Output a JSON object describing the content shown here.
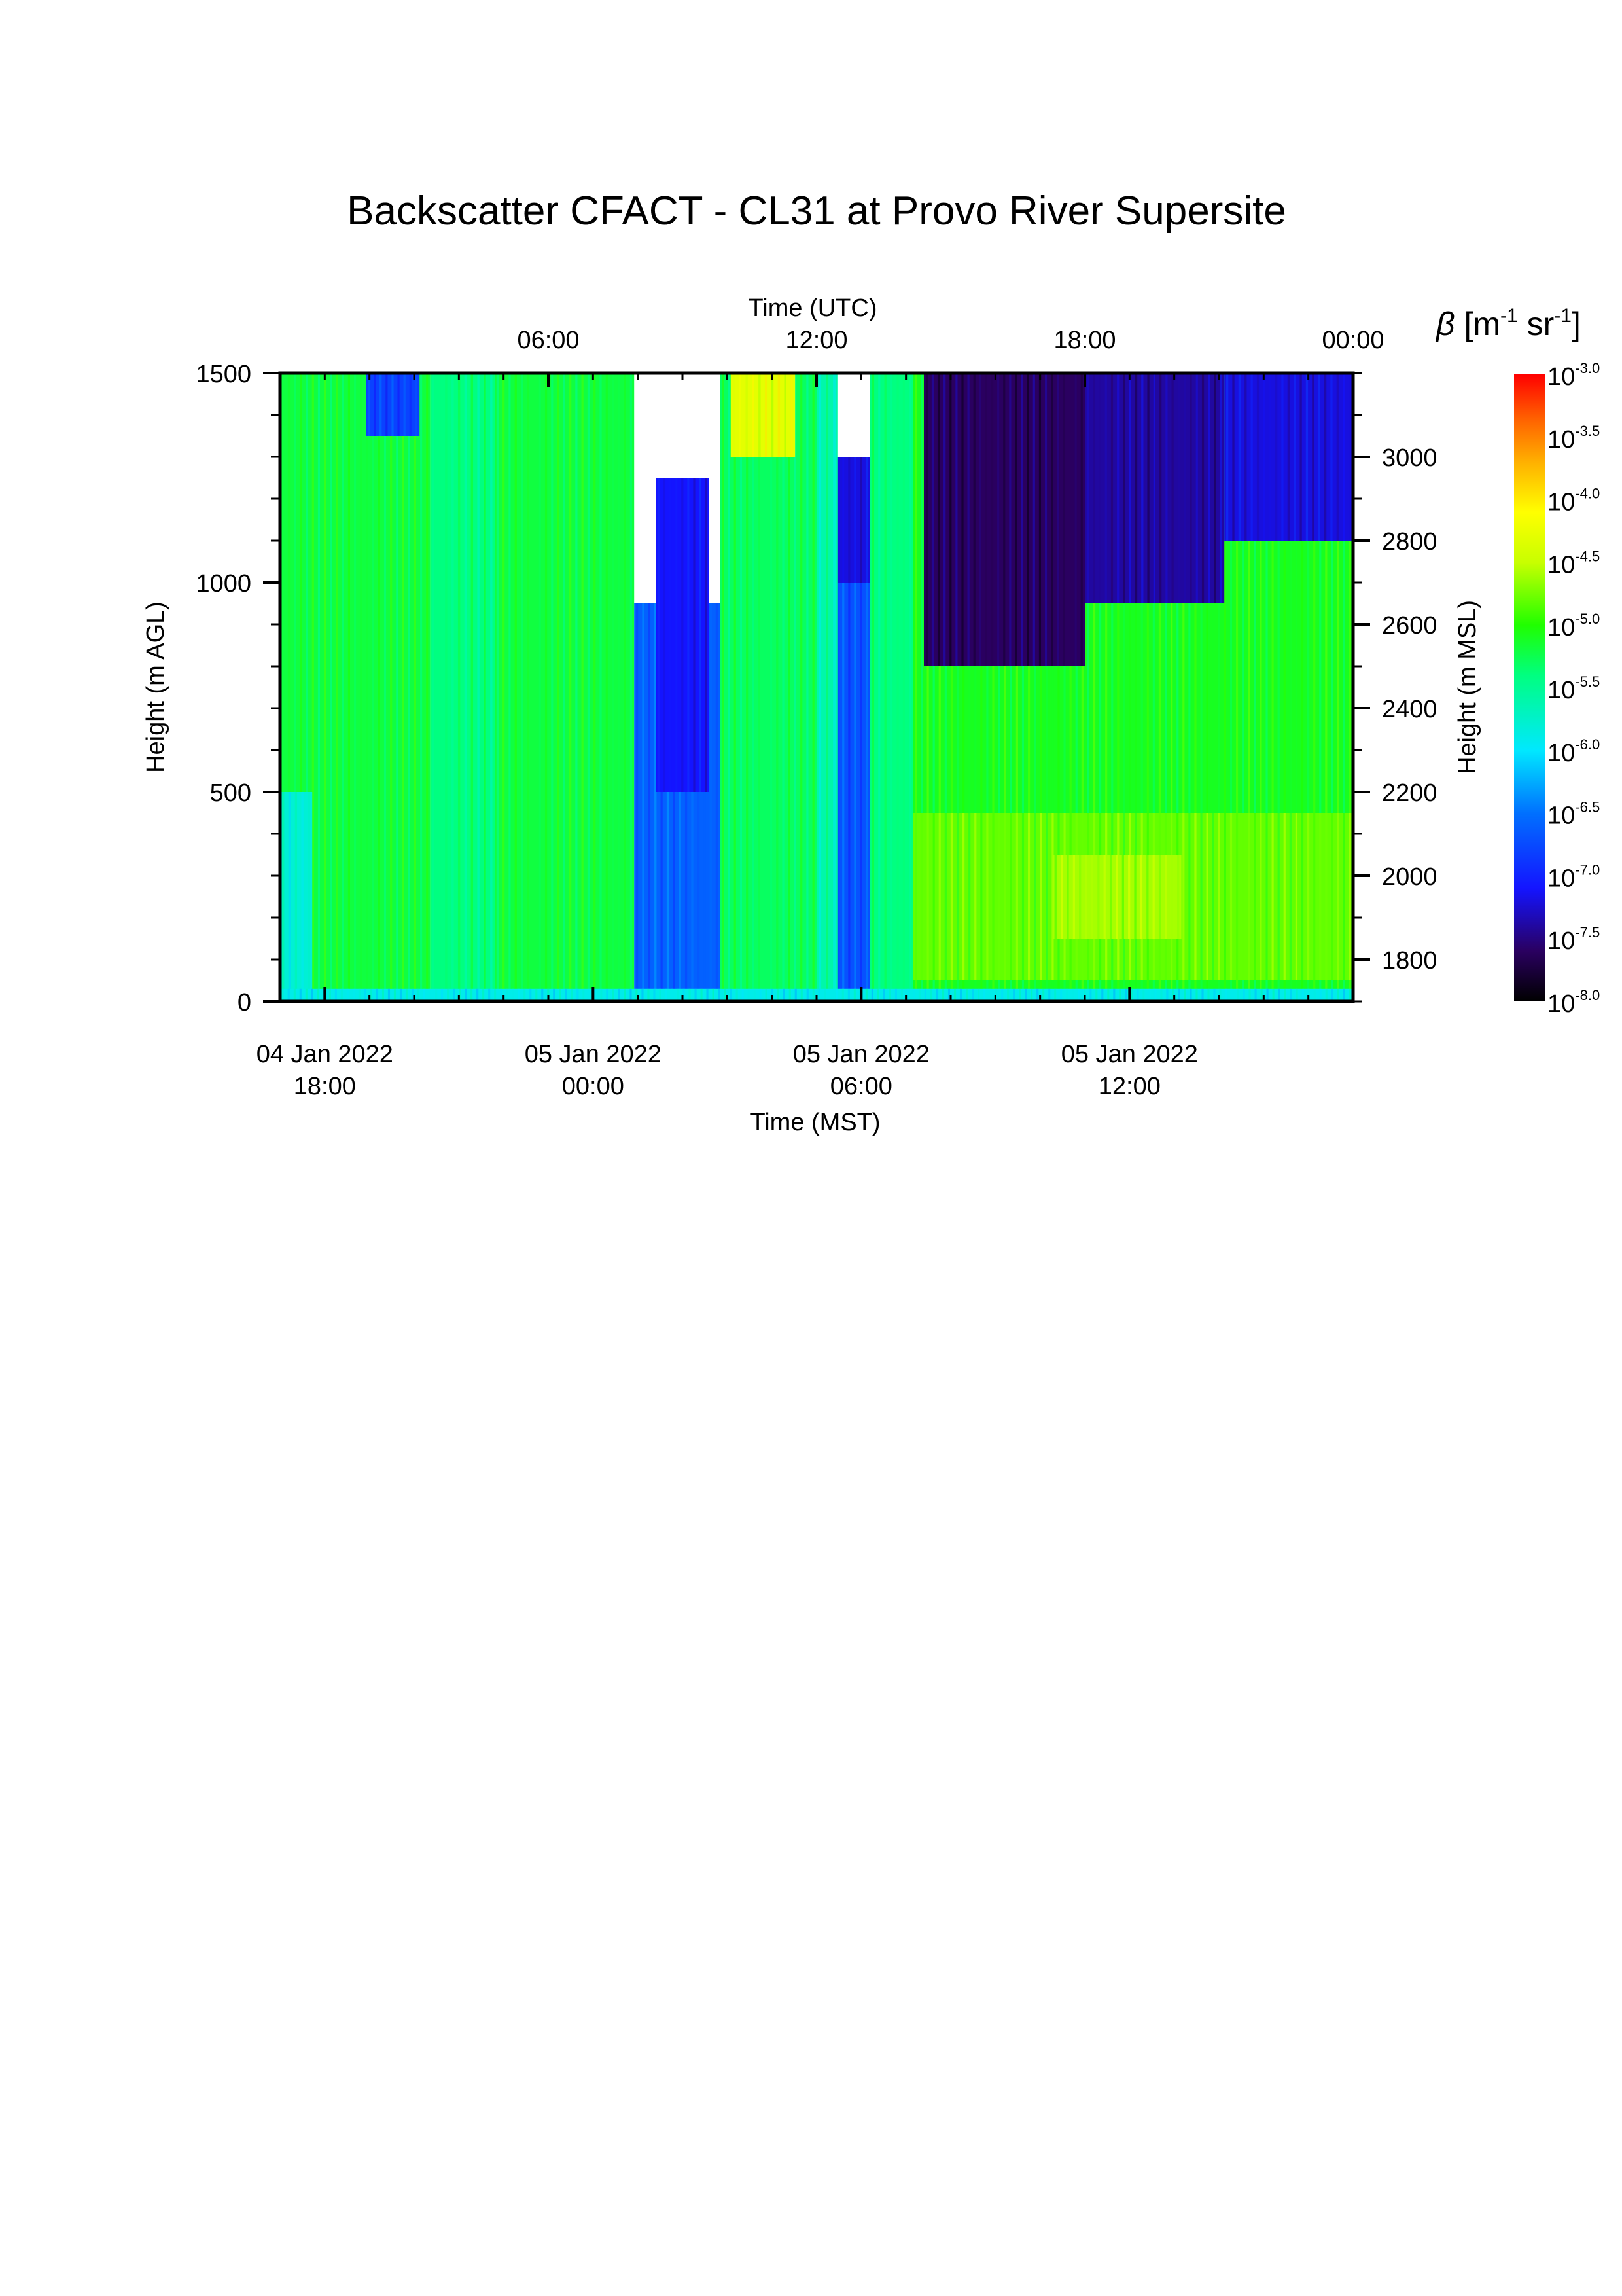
{
  "chart_data": {
    "type": "heatmap",
    "title": "Backscatter CFACT - CL31 at Provo River Supersite",
    "x_bottom": {
      "label": "Time (MST)",
      "range": [
        "2022-01-04T17:00",
        "2022-01-05T17:00"
      ],
      "ticks": [
        {
          "date": "04 Jan 2022",
          "time": "18:00"
        },
        {
          "date": "05 Jan 2022",
          "time": "00:00"
        },
        {
          "date": "05 Jan 2022",
          "time": "06:00"
        },
        {
          "date": "05 Jan 2022",
          "time": "12:00"
        }
      ]
    },
    "x_top": {
      "label": "Time (UTC)",
      "range": [
        "2022-01-05T00:00",
        "2022-01-06T00:00"
      ],
      "ticks": [
        "06:00",
        "12:00",
        "18:00",
        "00:00"
      ]
    },
    "y_left": {
      "label": "Height (m AGL)",
      "range": [
        0,
        1500
      ],
      "ticks": [
        "0",
        "500",
        "1000",
        "1500"
      ]
    },
    "y_right": {
      "label": "Height (m MSL)",
      "range": [
        1700,
        3200
      ],
      "ticks": [
        "1800",
        "2000",
        "2200",
        "2400",
        "2600",
        "2800",
        "3000"
      ]
    },
    "colorbar": {
      "symbol": "β",
      "units_open": " [m",
      "units_mid": " sr",
      "units_close": "]",
      "units_exp": "-1",
      "scale": "log",
      "range": [
        -8.0,
        -3.0
      ],
      "base": "10",
      "exponents": [
        "-3.0",
        "-3.5",
        "-4.0",
        "-4.5",
        "-5.0",
        "-5.5",
        "-6.0",
        "-6.5",
        "-7.0",
        "-7.5",
        "-8.0"
      ]
    },
    "field_regions": [
      {
        "t0": 0.0,
        "t1": 0.14,
        "h0": 0,
        "h1": 1500,
        "log_beta": -5.2
      },
      {
        "t0": 0.0,
        "t1": 0.03,
        "h0": 0,
        "h1": 500,
        "log_beta": -5.8
      },
      {
        "t0": 0.08,
        "t1": 0.13,
        "h0": 1350,
        "h1": 1500,
        "log_beta": -6.8
      },
      {
        "t0": 0.14,
        "t1": 0.2,
        "h0": 0,
        "h1": 1500,
        "log_beta": -5.4
      },
      {
        "t0": 0.2,
        "t1": 0.33,
        "h0": 0,
        "h1": 1500,
        "log_beta": -5.2
      },
      {
        "t0": 0.33,
        "t1": 0.41,
        "h0": 0,
        "h1": 950,
        "log_beta": -6.6
      },
      {
        "t0": 0.35,
        "t1": 0.4,
        "h0": 500,
        "h1": 1250,
        "log_beta": -7.1
      },
      {
        "t0": 0.41,
        "t1": 0.5,
        "h0": 0,
        "h1": 1500,
        "log_beta": -5.3
      },
      {
        "t0": 0.5,
        "t1": 0.55,
        "h0": 0,
        "h1": 1000,
        "log_beta": -6.7
      },
      {
        "t0": 0.5,
        "t1": 0.55,
        "h0": 1000,
        "h1": 1300,
        "log_beta": -7.2
      },
      {
        "t0": 0.5,
        "t1": 0.52,
        "h0": 0,
        "h1": 1500,
        "log_beta": -5.6
      },
      {
        "t0": 0.42,
        "t1": 0.48,
        "h0": 1300,
        "h1": 1500,
        "log_beta": -4.3
      },
      {
        "t0": 0.55,
        "t1": 0.59,
        "h0": 0,
        "h1": 1500,
        "log_beta": -5.4
      },
      {
        "t0": 0.59,
        "t1": 1.0,
        "h0": 0,
        "h1": 1500,
        "log_beta": -5.1
      },
      {
        "t0": 0.59,
        "t1": 1.0,
        "h0": 50,
        "h1": 450,
        "log_beta": -4.8
      },
      {
        "t0": 0.72,
        "t1": 0.84,
        "h0": 150,
        "h1": 350,
        "log_beta": -4.6
      },
      {
        "t0": 0.6,
        "t1": 0.75,
        "h0": 800,
        "h1": 1500,
        "log_beta": -7.6
      },
      {
        "t0": 0.75,
        "t1": 0.88,
        "h0": 950,
        "h1": 1500,
        "log_beta": -7.4
      },
      {
        "t0": 0.88,
        "t1": 1.0,
        "h0": 1100,
        "h1": 1500,
        "log_beta": -7.2
      },
      {
        "t0": 0.0,
        "t1": 1.0,
        "h0": 0,
        "h1": 30,
        "log_beta": -5.9
      }
    ]
  }
}
